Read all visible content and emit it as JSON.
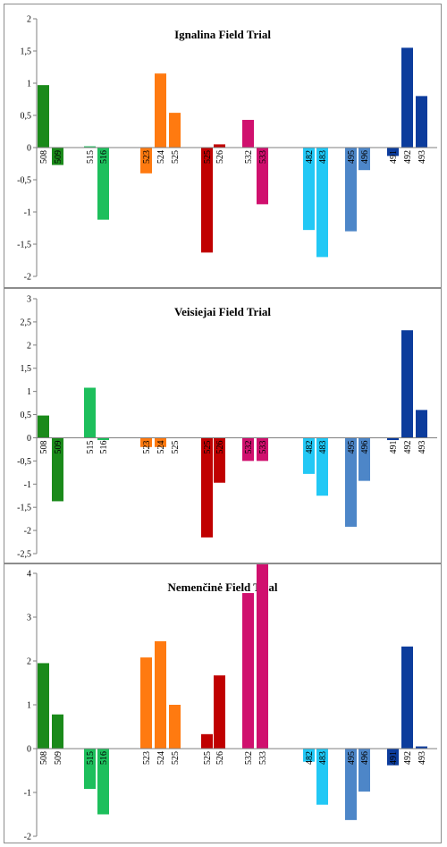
{
  "chart_data": [
    {
      "type": "bar",
      "title": "Ignalina Field Trial",
      "ylim": [
        -2,
        2
      ],
      "yticks": [
        2,
        1.5,
        1,
        0.5,
        0,
        -0.5,
        -1,
        -1.5,
        -2
      ],
      "ytick_labels": [
        "2",
        "1,5",
        "1",
        "0,5",
        "0",
        "-0,5",
        "-1",
        "-1,5",
        "-2"
      ],
      "grid": false,
      "categories": [
        "508",
        "509",
        "515",
        "516",
        "523",
        "524",
        "525",
        "525",
        "526",
        "532",
        "533",
        "482",
        "483",
        "495",
        "496",
        "491",
        "492",
        "493"
      ],
      "values": [
        0.97,
        -0.27,
        0.02,
        -1.12,
        -0.4,
        1.15,
        0.54,
        -1.63,
        0.05,
        0.43,
        -0.88,
        -1.28,
        -1.7,
        -1.3,
        -0.35,
        -0.13,
        1.55,
        0.8
      ],
      "colors": [
        "#1a8a1a",
        "#1a8a1a",
        "#1dbf5c",
        "#1dbf5c",
        "#ff7a10",
        "#ff7a10",
        "#ff7a10",
        "#c00000",
        "#c00000",
        "#d0106e",
        "#d0106e",
        "#22c8f5",
        "#22c8f5",
        "#4d86c8",
        "#4d86c8",
        "#0c3c9c",
        "#0c3c9c",
        "#0c3c9c"
      ]
    },
    {
      "type": "bar",
      "title": "Veisiejai Field Trial",
      "ylim": [
        -2.5,
        3
      ],
      "yticks": [
        3,
        2.5,
        2,
        1.5,
        1,
        0.5,
        0,
        -0.5,
        -1,
        -1.5,
        -2,
        -2.5
      ],
      "ytick_labels": [
        "3",
        "2,5",
        "2",
        "1,5",
        "1",
        "0,5",
        "0",
        "-0,5",
        "-1",
        "-1,5",
        "-2",
        "-2,5"
      ],
      "grid": false,
      "categories": [
        "508",
        "509",
        "515",
        "516",
        "523",
        "524",
        "525",
        "525",
        "526",
        "532",
        "533",
        "482",
        "483",
        "495",
        "496",
        "491",
        "492",
        "493"
      ],
      "values": [
        0.48,
        -1.37,
        1.08,
        -0.05,
        -0.2,
        -0.2,
        0.0,
        -2.15,
        -0.97,
        -0.5,
        -0.5,
        -0.78,
        -1.25,
        -1.92,
        -0.93,
        -0.05,
        2.32,
        0.6
      ],
      "colors": [
        "#1a8a1a",
        "#1a8a1a",
        "#1dbf5c",
        "#1dbf5c",
        "#ff7a10",
        "#ff7a10",
        "#ff7a10",
        "#c00000",
        "#c00000",
        "#d0106e",
        "#d0106e",
        "#22c8f5",
        "#22c8f5",
        "#4d86c8",
        "#4d86c8",
        "#0c3c9c",
        "#0c3c9c",
        "#0c3c9c"
      ]
    },
    {
      "type": "bar",
      "title": "Nemenčinė Field Trial",
      "ylim": [
        -2,
        5
      ],
      "yticks": [
        4,
        3,
        2,
        1,
        0,
        -1,
        -2
      ],
      "ytick_labels": [
        "4",
        "3",
        "2",
        "1",
        "0",
        "-1",
        "-2"
      ],
      "grid": false,
      "categories": [
        "508",
        "509",
        "515",
        "516",
        "523",
        "524",
        "525",
        "525",
        "526",
        "532",
        "533",
        "482",
        "483",
        "495",
        "496",
        "491",
        "492",
        "493"
      ],
      "values": [
        1.95,
        0.78,
        -0.92,
        -1.5,
        2.08,
        2.45,
        1.0,
        0.33,
        1.67,
        3.55,
        4.35,
        -0.3,
        -1.28,
        -1.63,
        -0.98,
        -0.38,
        2.33,
        0.05
      ],
      "colors": [
        "#1a8a1a",
        "#1a8a1a",
        "#1dbf5c",
        "#1dbf5c",
        "#ff7a10",
        "#ff7a10",
        "#ff7a10",
        "#c00000",
        "#c00000",
        "#d0106e",
        "#d0106e",
        "#22c8f5",
        "#22c8f5",
        "#4d86c8",
        "#4d86c8",
        "#0c3c9c",
        "#0c3c9c",
        "#0c3c9c"
      ]
    }
  ]
}
